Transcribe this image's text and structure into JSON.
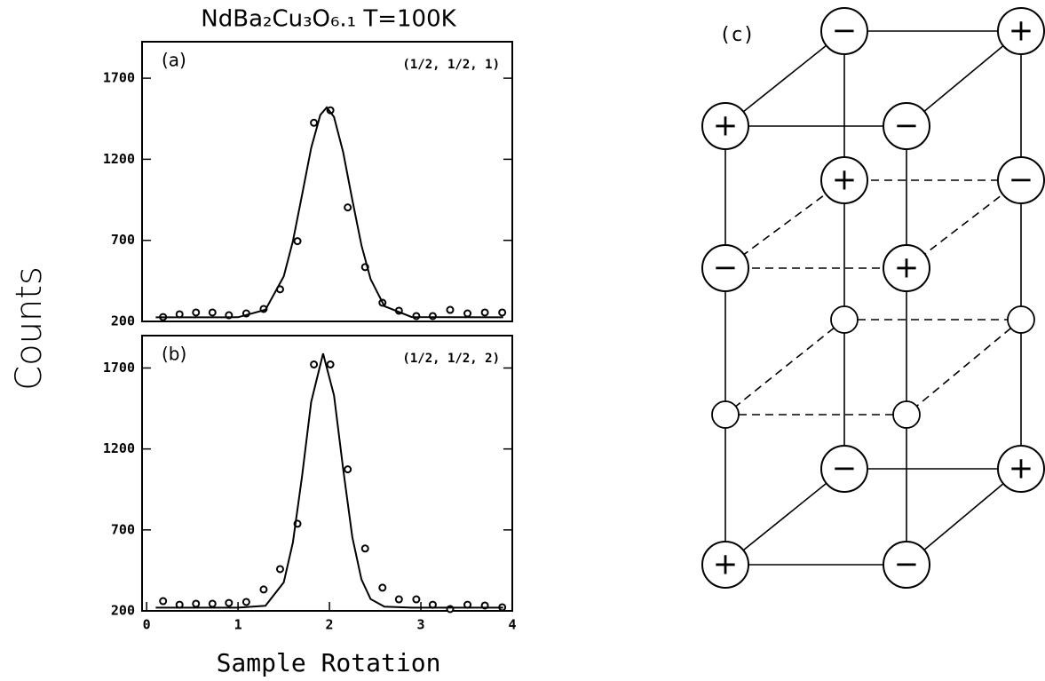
{
  "title": "NdBa₂Cu₃O₆.₁  T=100K",
  "y_label": "Counts",
  "x_label": "Sample Rotation",
  "chart_data": [
    {
      "type": "scatter",
      "label": "(a)",
      "annotation": "(1/2, 1/2, 1)",
      "xlim": [
        -0.05,
        4
      ],
      "ylim": [
        200,
        1925
      ],
      "yticks": [
        200,
        700,
        1200,
        1700
      ],
      "series": [
        {
          "color": "#000000",
          "x": [
            0.18,
            0.36,
            0.54,
            0.72,
            0.9,
            1.09,
            1.28,
            1.46,
            1.65,
            1.83,
            2.01,
            2.2,
            2.39,
            2.58,
            2.76,
            2.95,
            3.13,
            3.32,
            3.51,
            3.7,
            3.89
          ],
          "values": [
            227,
            244,
            255,
            255,
            238,
            249,
            277,
            398,
            695,
            1425,
            1502,
            903,
            535,
            315,
            266,
            233,
            233,
            271,
            249,
            255,
            255
          ]
        },
        {
          "type": "line",
          "color": "#000000",
          "x": [
            0.1,
            1.0,
            1.3,
            1.5,
            1.6,
            1.7,
            1.8,
            1.9,
            1.97,
            2.05,
            2.15,
            2.25,
            2.35,
            2.45,
            2.6,
            2.9,
            3.9
          ],
          "values": [
            225,
            226,
            272,
            478,
            695,
            980,
            1270,
            1474,
            1520,
            1461,
            1244,
            950,
            670,
            461,
            294,
            227,
            225
          ]
        }
      ]
    },
    {
      "type": "scatter",
      "label": "(b)",
      "annotation": "(1/2, 1/2, 2)",
      "xlim": [
        -0.05,
        4
      ],
      "xticks": [
        0,
        1,
        2,
        3,
        4
      ],
      "ylim": [
        200,
        1900
      ],
      "yticks": [
        200,
        700,
        1200,
        1700
      ],
      "series": [
        {
          "color": "#000000",
          "x": [
            0.18,
            0.36,
            0.54,
            0.72,
            0.9,
            1.09,
            1.28,
            1.46,
            1.65,
            1.83,
            2.01,
            2.2,
            2.39,
            2.58,
            2.76,
            2.95,
            3.13,
            3.32,
            3.51,
            3.7,
            3.89
          ],
          "values": [
            260,
            238,
            244,
            244,
            249,
            255,
            332,
            458,
            738,
            1722,
            1722,
            1074,
            585,
            343,
            271,
            271,
            238,
            211,
            238,
            233,
            222
          ]
        },
        {
          "type": "line",
          "color": "#000000",
          "x": [
            0.1,
            1.0,
            1.3,
            1.5,
            1.6,
            1.7,
            1.8,
            1.93,
            2.05,
            2.15,
            2.25,
            2.35,
            2.45,
            2.6,
            2.9,
            3.9
          ],
          "values": [
            220,
            220,
            231,
            376,
            623,
            1031,
            1491,
            1790,
            1531,
            1077,
            656,
            394,
            273,
            226,
            220,
            220
          ]
        }
      ]
    }
  ],
  "diagram": {
    "label": "(c)",
    "nodes": [
      "−",
      "+",
      "+",
      "−",
      "+",
      "−",
      "−",
      "+",
      "−",
      "+",
      "+",
      "−"
    ]
  }
}
